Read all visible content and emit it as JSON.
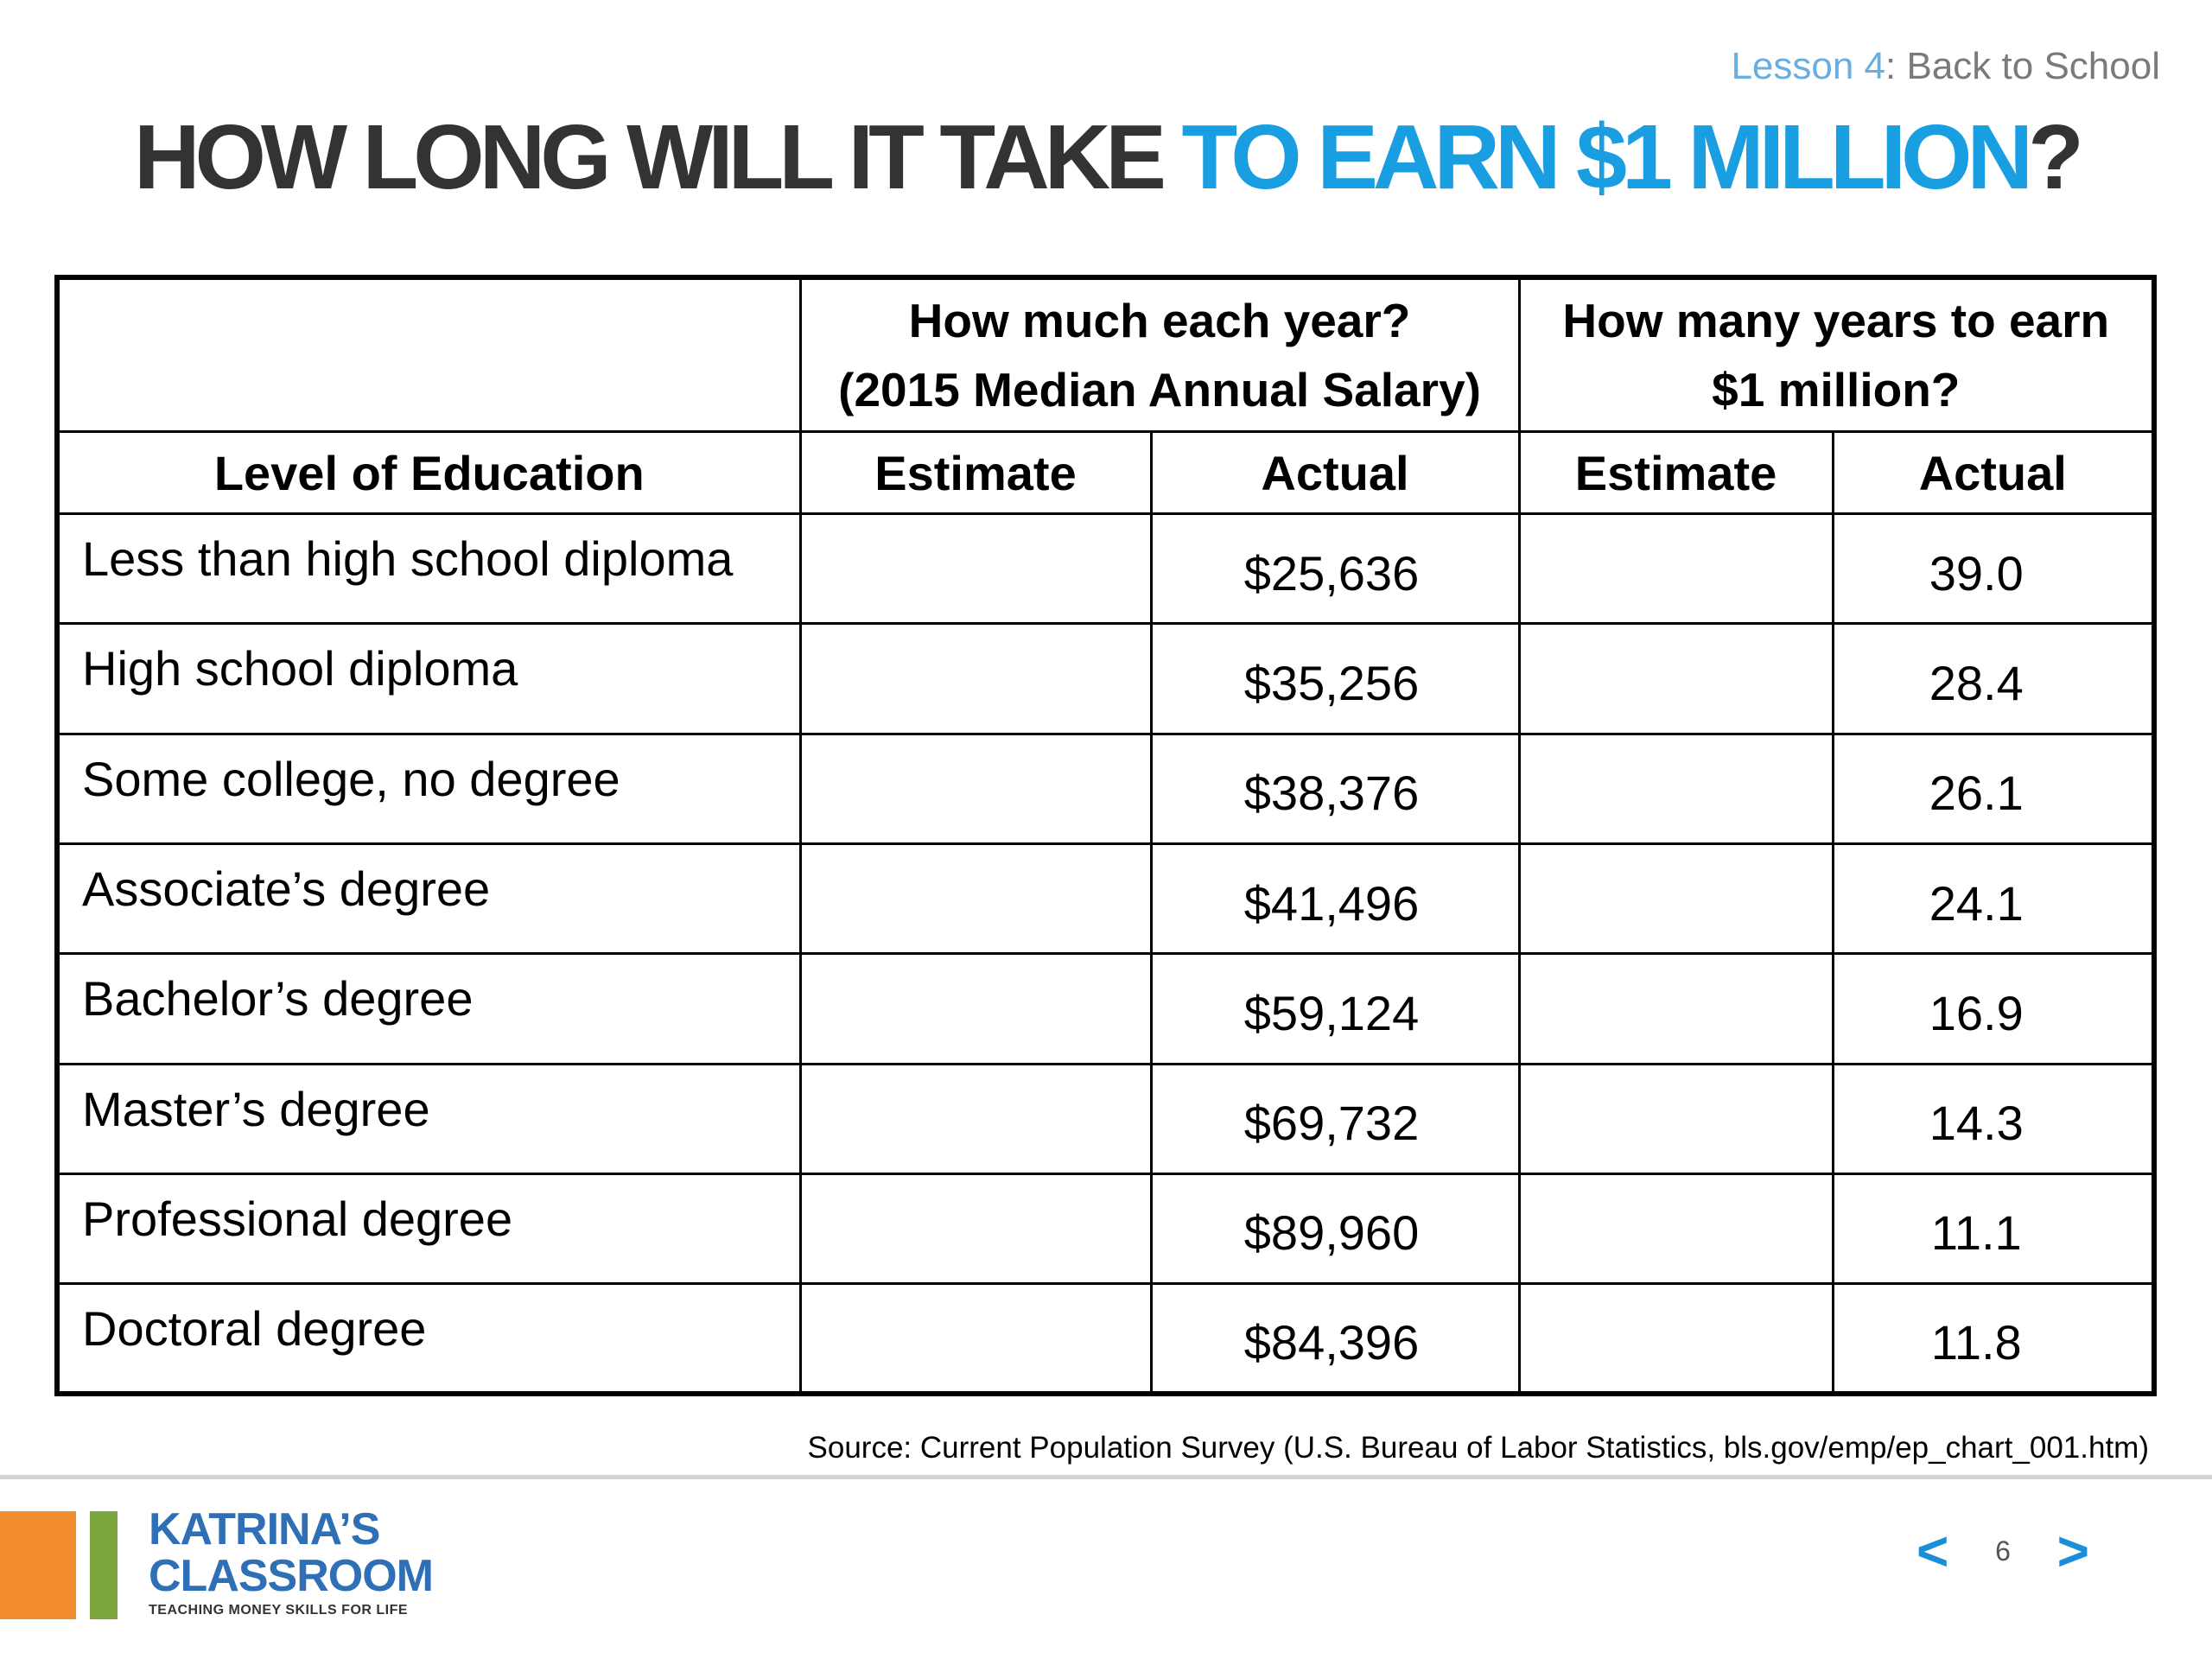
{
  "lesson": {
    "number_label": "Lesson 4",
    "separator": ":",
    "name": " Back to School"
  },
  "title": {
    "part1": "HOW LONG WILL IT TAKE ",
    "part2": "TO EARN $1 MILLION",
    "part3": "?"
  },
  "table": {
    "group_headers": {
      "salary_line1": "How much each year?",
      "salary_line2": "(2015 Median Annual Salary)",
      "years_line1": "How many years to earn",
      "years_line2": "$1 million?"
    },
    "columns": {
      "level": "Level of Education",
      "salary_estimate": "Estimate",
      "salary_actual": "Actual",
      "years_estimate": "Estimate",
      "years_actual": "Actual"
    },
    "rows": [
      {
        "level": "Less than high school diploma",
        "salary_estimate": "",
        "salary_actual": "$25,636",
        "years_estimate": "",
        "years_actual": "39.0"
      },
      {
        "level": "High school diploma",
        "salary_estimate": "",
        "salary_actual": "$35,256",
        "years_estimate": "",
        "years_actual": "28.4"
      },
      {
        "level": "Some college, no degree",
        "salary_estimate": "",
        "salary_actual": "$38,376",
        "years_estimate": "",
        "years_actual": "26.1"
      },
      {
        "level": "Associate’s degree",
        "salary_estimate": "",
        "salary_actual": "$41,496",
        "years_estimate": "",
        "years_actual": "24.1"
      },
      {
        "level": "Bachelor’s degree",
        "salary_estimate": "",
        "salary_actual": "$59,124",
        "years_estimate": "",
        "years_actual": "16.9"
      },
      {
        "level": "Master’s degree",
        "salary_estimate": "",
        "salary_actual": "$69,732",
        "years_estimate": "",
        "years_actual": "14.3"
      },
      {
        "level": "Professional degree",
        "salary_estimate": "",
        "salary_actual": "$89,960",
        "years_estimate": "",
        "years_actual": "11.1"
      },
      {
        "level": "Doctoral degree",
        "salary_estimate": "",
        "salary_actual": "$84,396",
        "years_estimate": "",
        "years_actual": "11.8"
      }
    ]
  },
  "source": "Source: Current Population Survey (U.S. Bureau of Labor Statistics, bls.gov/emp/ep_chart_001.htm)",
  "logo": {
    "line1": "KATRINA’S",
    "line2": "CLASSROOM",
    "tagline": "TEACHING MONEY SKILLS FOR LIFE"
  },
  "nav": {
    "prev_icon": "chevron-left-icon",
    "next_icon": "chevron-right-icon",
    "prev_glyph": "<",
    "next_glyph": ">",
    "page": "6"
  },
  "colors": {
    "accent_blue": "#1a9ee2",
    "title_gray": "#333333",
    "logo_orange": "#f28c2d",
    "logo_green": "#7aa63d",
    "logo_blue": "#2e6fb5"
  }
}
